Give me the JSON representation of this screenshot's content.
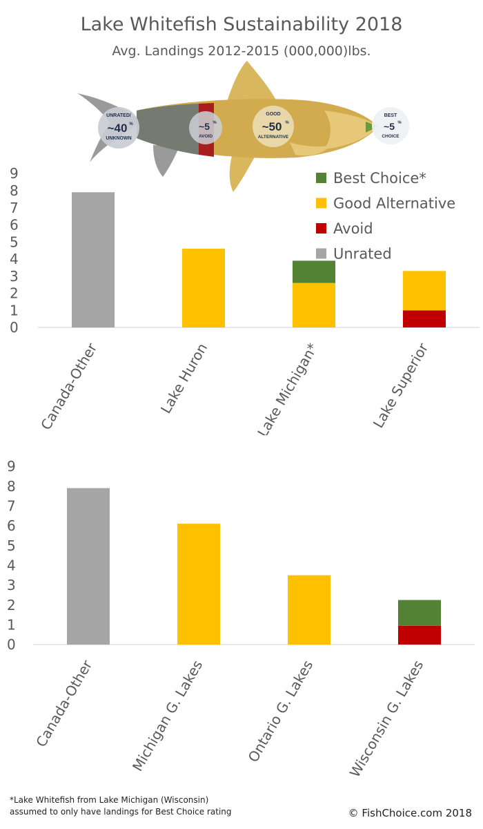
{
  "title": "Lake Whitefish Sustainability 2018",
  "subtitle": "Avg. Landings 2012-2015 (000,000)lbs.",
  "colors": {
    "best_choice": "#548235",
    "good_alternative": "#ffc000",
    "avoid": "#c00000",
    "unrated": "#a6a6a6",
    "axis_text": "#595959"
  },
  "fish": {
    "badges": [
      {
        "top": "UNRATED/",
        "big": "~40",
        "pct": "%",
        "bottom": "UNKNOWN"
      },
      {
        "top": "",
        "big": "~5",
        "pct": "%",
        "bottom": "AVOID"
      },
      {
        "top": "GOOD",
        "big": "~50",
        "pct": "%",
        "bottom": "ALTERNATIVE"
      },
      {
        "top": "BEST",
        "big": "~5",
        "pct": "%",
        "bottom": "CHOICE"
      }
    ]
  },
  "legend": [
    "Best Choice*",
    "Good Alternative",
    "Avoid",
    "Unrated"
  ],
  "chart_data": [
    {
      "type": "bar",
      "stacked": true,
      "title": "",
      "xlabel": "",
      "ylabel": "",
      "ylim": [
        0,
        9
      ],
      "yticks": [
        0,
        1,
        2,
        3,
        4,
        5,
        6,
        7,
        8,
        9
      ],
      "categories": [
        "Canada-Other",
        "Lake Huron",
        "Lake Michigan*",
        "Lake Superior"
      ],
      "series": [
        {
          "name": "Unrated",
          "values": [
            7.9,
            0,
            0,
            0
          ]
        },
        {
          "name": "Avoid",
          "values": [
            0,
            0,
            0,
            1.0
          ]
        },
        {
          "name": "Good Alternative",
          "values": [
            0,
            4.6,
            2.6,
            2.3
          ]
        },
        {
          "name": "Best Choice*",
          "values": [
            0,
            0,
            1.3,
            0
          ]
        }
      ],
      "legend": "top-right"
    },
    {
      "type": "bar",
      "stacked": true,
      "title": "",
      "xlabel": "",
      "ylabel": "",
      "ylim": [
        0,
        9
      ],
      "yticks": [
        0,
        1,
        2,
        3,
        4,
        5,
        6,
        7,
        8,
        9
      ],
      "categories": [
        "Canada-Other",
        "Michigan G. Lakes",
        "Ontario G. Lakes",
        "Wisconsin G. Lakes"
      ],
      "series": [
        {
          "name": "Unrated",
          "values": [
            7.9,
            0,
            0,
            0
          ]
        },
        {
          "name": "Avoid",
          "values": [
            0,
            0,
            0,
            0.95
          ]
        },
        {
          "name": "Good Alternative",
          "values": [
            0,
            6.1,
            3.5,
            0
          ]
        },
        {
          "name": "Best Choice*",
          "values": [
            0,
            0,
            0,
            1.3
          ]
        }
      ]
    }
  ],
  "footnote": {
    "line1": "*Lake Whitefish from Lake Michigan (Wisconsin)",
    "line2": "assumed to only have landings for Best Choice rating"
  },
  "copyright": "© FishChoice.com 2018"
}
